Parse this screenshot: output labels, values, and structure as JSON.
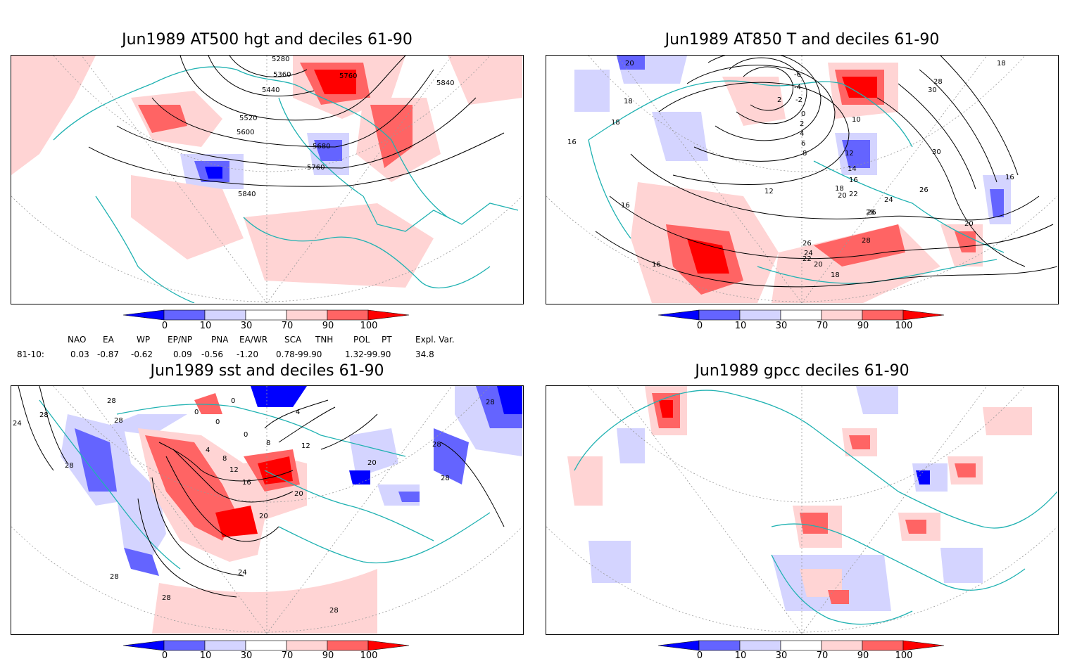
{
  "panels": [
    {
      "title": "Jun1989 AT500 hgt and deciles 61-90",
      "contour_labels": [
        "5280",
        "5360",
        "5440",
        "5520",
        "5600",
        "5680",
        "5760",
        "5840",
        "5760",
        "5840"
      ]
    },
    {
      "title": "Jun1989 AT850 T and deciles 61-90",
      "contour_labels": [
        "20",
        "18",
        "16",
        "18",
        "16",
        "16",
        "-6",
        "-4",
        "-2",
        "2",
        "0",
        "2",
        "4",
        "6",
        "8",
        "10",
        "12",
        "12",
        "14",
        "16",
        "18",
        "20",
        "22",
        "24",
        "26",
        "28",
        "30",
        "30",
        "28",
        "26",
        "24",
        "22",
        "20",
        "18",
        "26",
        "28",
        "18",
        "16",
        "20"
      ]
    },
    {
      "title": "Jun1989 sst and deciles 61-90",
      "contour_labels": [
        "28",
        "24",
        "28",
        "28",
        "28",
        "0",
        "0",
        "0",
        "4",
        "0",
        "4",
        "8",
        "8",
        "12",
        "12",
        "16",
        "20",
        "20",
        "24",
        "28",
        "28",
        "28",
        "28",
        "20",
        "28",
        "28"
      ]
    },
    {
      "title": "Jun1989 gpcc deciles 61-90",
      "contour_labels": []
    }
  ],
  "colorbar": {
    "ticks": [
      "0",
      "10",
      "30",
      "70",
      "90",
      "100"
    ],
    "colors": [
      "#0000ff",
      "#6464ff",
      "#d4d4ff",
      "#ffffff",
      "#ffd4d4",
      "#ff6464",
      "#ff0000"
    ]
  },
  "indices": {
    "headers": [
      "NAO",
      "EA",
      "WP",
      "EP/NP",
      "PNA",
      "EA/WR",
      "SCA",
      "TNH",
      "POL",
      "PT",
      "Expl. Var."
    ],
    "row_label": "81-10:",
    "values": [
      "0.03",
      "-0.87",
      "-0.62",
      "0.09",
      "-0.56",
      "-1.20",
      "0.78-99.90",
      "1.32-99.90",
      "34.8"
    ]
  },
  "colors": {
    "coastline": "#20b2b2",
    "strong_neg": "#0000ff",
    "mid_neg": "#6464ff",
    "weak_neg": "#d4d4ff",
    "weak_pos": "#ffd4d4",
    "mid_pos": "#ff6464",
    "strong_pos": "#ff0000"
  }
}
